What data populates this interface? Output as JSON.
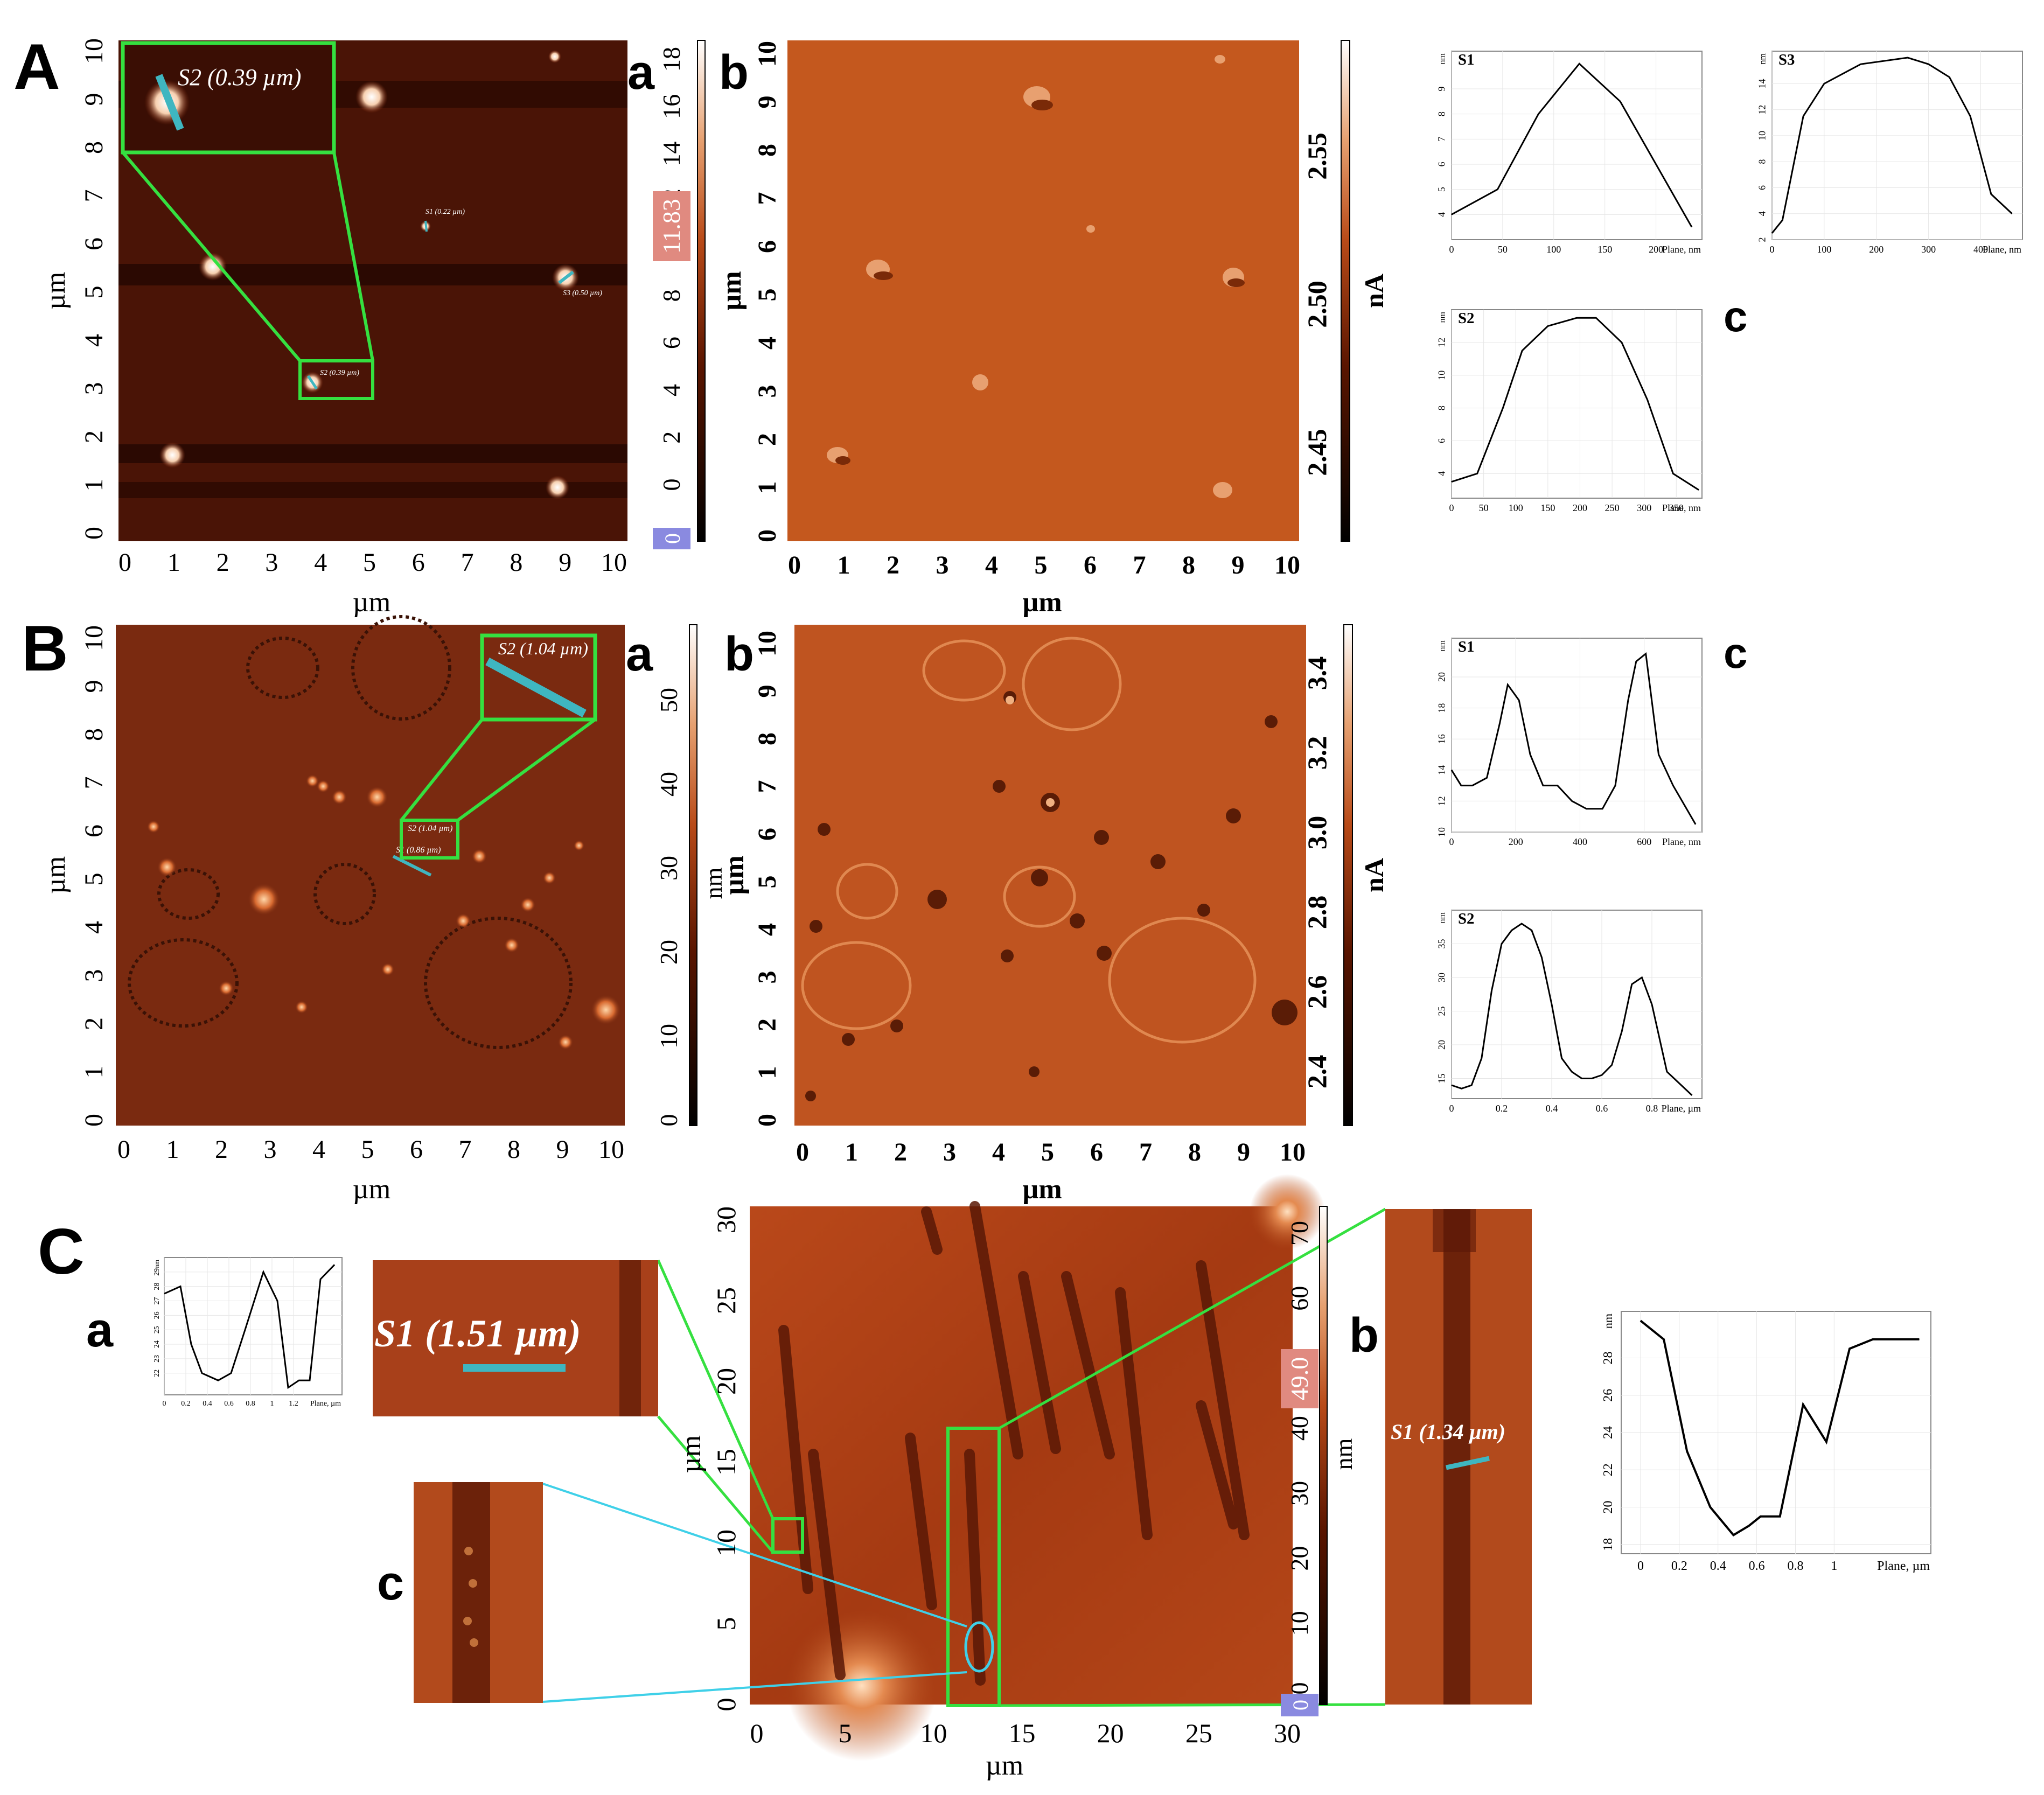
{
  "panel_letters": {
    "A": "A",
    "B": "B",
    "C": "C"
  },
  "sub_letters": {
    "a": "a",
    "b": "b",
    "c": "c"
  },
  "axis_unit": "µm",
  "colorbar_units": {
    "nm": "nm",
    "nA": "nA"
  },
  "A": {
    "xticks": [
      "0",
      "1",
      "2",
      "3",
      "4",
      "5",
      "6",
      "7",
      "8",
      "9",
      "10"
    ],
    "yticks": [
      "0",
      "1",
      "2",
      "3",
      "4",
      "5",
      "6",
      "7",
      "8",
      "9",
      "10"
    ],
    "colorbar_ticks": [
      "0",
      "2",
      "4",
      "6",
      "8",
      "10",
      "12",
      "14",
      "16",
      "18"
    ],
    "colorbar_top_marker": "0",
    "colorbar_marker": "11.83",
    "annot_inset": "S2 (0.39 µm)",
    "annot_s1": "S1 (0.22 µm)",
    "annot_s2": "S2 (0.39 µm)",
    "annot_s3": "S3 (0.50 µm)",
    "b_colorbar_ticks": [
      "2.45",
      "2.50",
      "2.55"
    ],
    "b_yticks": [
      "0",
      "1",
      "2",
      "3",
      "4",
      "5",
      "6",
      "7",
      "8",
      "9",
      "10"
    ]
  },
  "B": {
    "xticks": [
      "0",
      "1",
      "2",
      "3",
      "4",
      "5",
      "6",
      "7",
      "8",
      "9",
      "10"
    ],
    "yticks": [
      "0",
      "1",
      "2",
      "3",
      "4",
      "5",
      "6",
      "7",
      "8",
      "9",
      "10"
    ],
    "colorbar_ticks": [
      "0",
      "10",
      "20",
      "30",
      "40",
      "50"
    ],
    "annot_inset": "S2 (1.04 µm)",
    "annot_s2": "S2 (1.04 µm)",
    "annot_s1": "S1 (0.86 µm)",
    "b_colorbar_ticks": [
      "2.4",
      "2.6",
      "2.8",
      "3.0",
      "3.2",
      "3.4"
    ]
  },
  "C": {
    "xticks": [
      "0",
      "5",
      "10",
      "15",
      "20",
      "25",
      "30"
    ],
    "yticks": [
      "0",
      "5",
      "10",
      "15",
      "20",
      "25",
      "30"
    ],
    "colorbar_ticks": [
      "0",
      "10",
      "20",
      "30",
      "40",
      "50",
      "60",
      "70"
    ],
    "colorbar_marker": "49.0",
    "colorbar_bottom_marker": "0",
    "annot_a": "S1 (1.51 µm)",
    "annot_b": "S1 (1.34 µm)"
  },
  "chart_data": [
    {
      "id": "A-S1",
      "type": "line",
      "title": "S1",
      "ylabel": "nm",
      "xlabel": "Plane, nm",
      "x": [
        0,
        45,
        85,
        125,
        165,
        200,
        235
      ],
      "values": [
        4,
        5,
        8,
        10,
        8.5,
        6,
        3.5
      ],
      "xlim": [
        0,
        245
      ],
      "ylim": [
        3,
        10.5
      ],
      "xticks": [
        0,
        50,
        100,
        150,
        200
      ],
      "yticks": [
        4,
        5,
        6,
        7,
        8,
        9
      ]
    },
    {
      "id": "A-S3",
      "type": "line",
      "title": "S3",
      "ylabel": "nm",
      "xlabel": "Plane, nm",
      "x": [
        0,
        20,
        60,
        100,
        170,
        260,
        300,
        340,
        380,
        420,
        460
      ],
      "values": [
        2.5,
        3.5,
        11.5,
        14,
        15.5,
        16,
        15.5,
        14.5,
        11.5,
        5.5,
        4
      ],
      "xlim": [
        0,
        480
      ],
      "ylim": [
        2,
        16.5
      ],
      "xticks": [
        0,
        100,
        200,
        300,
        400
      ],
      "yticks": [
        2,
        4,
        6,
        8,
        10,
        12,
        14
      ]
    },
    {
      "id": "A-S2",
      "type": "line",
      "title": "S2",
      "ylabel": "nm",
      "xlabel": "Plane, nm",
      "x": [
        0,
        40,
        80,
        110,
        150,
        195,
        225,
        265,
        305,
        345,
        385
      ],
      "values": [
        3.5,
        4,
        8,
        11.5,
        13,
        13.5,
        13.5,
        12,
        8.5,
        4,
        3
      ],
      "xlim": [
        0,
        390
      ],
      "ylim": [
        2.5,
        14
      ],
      "xticks": [
        0,
        50,
        100,
        150,
        200,
        250,
        300,
        350
      ],
      "yticks": [
        4,
        6,
        8,
        10,
        12
      ]
    },
    {
      "id": "B-S1",
      "type": "line",
      "title": "S1",
      "ylabel": "nm",
      "xlabel": "Plane, nm",
      "x": [
        0,
        30,
        65,
        110,
        150,
        175,
        210,
        245,
        285,
        330,
        375,
        420,
        470,
        510,
        550,
        575,
        605,
        645,
        690,
        760
      ],
      "values": [
        14,
        13,
        13,
        13.5,
        17,
        19.5,
        18.5,
        15,
        13,
        13,
        12,
        11.5,
        11.5,
        13,
        18.5,
        21,
        21.5,
        15,
        13,
        10.5
      ],
      "xlim": [
        0,
        780
      ],
      "ylim": [
        10,
        22.5
      ],
      "xticks": [
        0,
        200,
        400,
        600
      ],
      "yticks": [
        10,
        12,
        14,
        16,
        18,
        20
      ]
    },
    {
      "id": "B-S2",
      "type": "line",
      "title": "S2",
      "ylabel": "nm",
      "xlabel": "Plane, µm",
      "x": [
        0,
        0.04,
        0.08,
        0.12,
        0.16,
        0.2,
        0.24,
        0.28,
        0.32,
        0.36,
        0.4,
        0.44,
        0.48,
        0.52,
        0.56,
        0.6,
        0.64,
        0.68,
        0.72,
        0.76,
        0.8,
        0.86,
        0.96
      ],
      "values": [
        14,
        13.5,
        14,
        18,
        28,
        35,
        37,
        38,
        37,
        33,
        26,
        18,
        16,
        15,
        15,
        15.5,
        17,
        22,
        29,
        30,
        26,
        16,
        12.5
      ],
      "xlim": [
        0,
        1.0
      ],
      "ylim": [
        12,
        40
      ],
      "xticks": [
        0,
        0.2,
        0.4,
        0.6,
        0.8
      ],
      "yticks": [
        15,
        20,
        25,
        30,
        35
      ]
    },
    {
      "id": "C-a",
      "type": "line",
      "title": "",
      "ylabel": "nm",
      "xlabel": "Plane, µm",
      "x": [
        0,
        0.15,
        0.25,
        0.35,
        0.5,
        0.62,
        0.75,
        0.92,
        1.05,
        1.15,
        1.25,
        1.35,
        1.45,
        1.58
      ],
      "values": [
        27.5,
        28,
        24,
        22,
        21.5,
        22,
        25,
        29,
        27,
        21,
        21.5,
        21.5,
        28.5,
        29.5
      ],
      "xlim": [
        0,
        1.65
      ],
      "ylim": [
        20.5,
        30
      ],
      "xticks": [
        0,
        0.2,
        0.4,
        0.6,
        0.8,
        1.0,
        1.2
      ],
      "yticks": [
        22,
        23,
        24,
        25,
        26,
        27,
        28,
        29
      ]
    },
    {
      "id": "C-b",
      "type": "line",
      "title": "",
      "ylabel": "nm",
      "xlabel": "Plane, µm",
      "x": [
        0,
        0.12,
        0.24,
        0.36,
        0.48,
        0.56,
        0.62,
        0.72,
        0.84,
        0.96,
        1.08,
        1.2,
        1.32,
        1.44
      ],
      "values": [
        30,
        29,
        23,
        20,
        18.5,
        19,
        19.5,
        19.5,
        25.5,
        23.5,
        28.5,
        29,
        29,
        29
      ],
      "xlim": [
        -0.1,
        1.5
      ],
      "ylim": [
        17.5,
        30.5
      ],
      "xticks": [
        0,
        0.2,
        0.4,
        0.6,
        0.8,
        1.0
      ],
      "yticks": [
        18,
        20,
        22,
        24,
        26,
        28
      ]
    }
  ]
}
